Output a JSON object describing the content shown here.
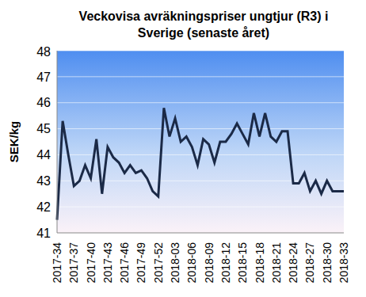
{
  "chart_data": {
    "type": "line",
    "title": "Veckovisa avräkningspriser ungtjur (R3) i Sverige (senaste året)",
    "y_label": "SEK/kg",
    "categories": [
      "2017-34",
      null,
      null,
      "2017-37",
      null,
      null,
      "2017-40",
      null,
      null,
      "2017-43",
      null,
      null,
      "2017-46",
      null,
      null,
      "2017-49",
      null,
      null,
      "2017-52",
      null,
      null,
      "2018-03",
      null,
      null,
      "2018-06",
      null,
      null,
      "2018-09",
      null,
      null,
      "2018-12",
      null,
      null,
      "2018-15",
      null,
      null,
      "2018-18",
      null,
      null,
      "2018-21",
      null,
      null,
      "2018-24",
      null,
      null,
      "2018-27",
      null,
      null,
      "2018-30",
      null,
      null,
      "2018-33"
    ],
    "values": [
      41.5,
      45.3,
      44.0,
      42.8,
      43.0,
      43.6,
      43.1,
      44.6,
      42.5,
      44.3,
      43.9,
      43.7,
      43.3,
      43.6,
      43.3,
      43.4,
      43.1,
      42.6,
      42.4,
      45.8,
      44.7,
      45.4,
      44.5,
      44.7,
      44.3,
      43.6,
      44.6,
      44.4,
      43.7,
      44.5,
      44.5,
      44.8,
      45.2,
      44.8,
      44.4,
      45.6,
      44.7,
      45.6,
      44.7,
      44.5,
      44.9,
      44.9,
      42.9,
      42.9,
      43.3,
      42.6,
      43.0,
      42.5,
      43.0,
      42.6,
      42.6,
      42.6
    ],
    "color": "#1b2a47",
    "ylim": [
      41,
      48
    ],
    "yticks": [
      41,
      42,
      43,
      44,
      45,
      46,
      47,
      48
    ],
    "grid": true
  }
}
